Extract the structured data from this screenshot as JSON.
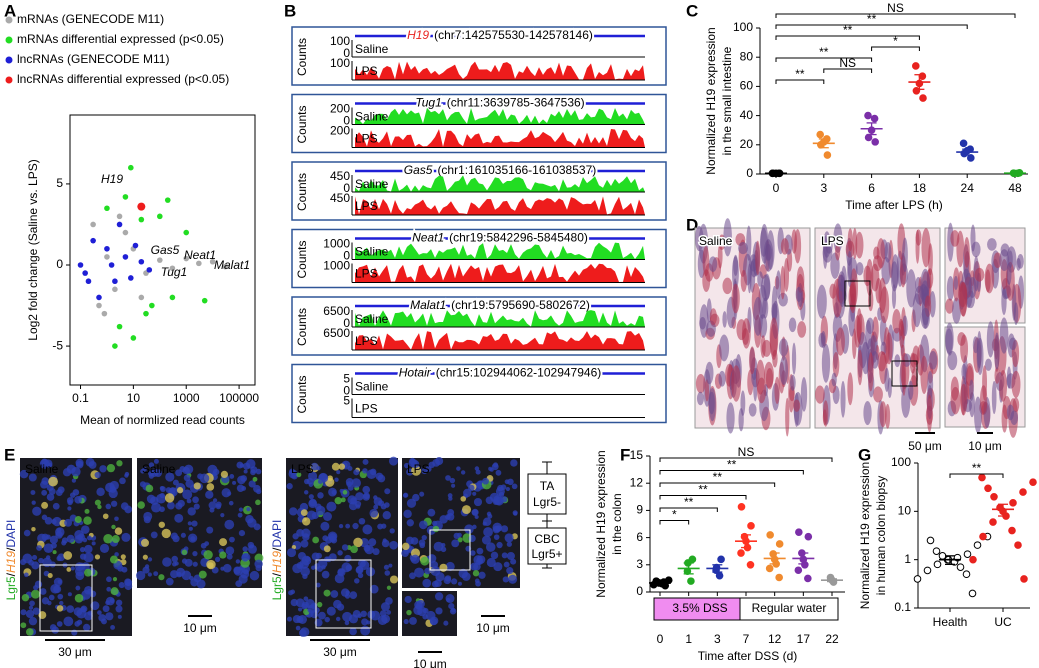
{
  "panel_labels": [
    "A",
    "B",
    "C",
    "D",
    "E",
    "F",
    "G"
  ],
  "chart_data": [
    {
      "type": "scatter",
      "xlabel": "Mean of normlized read counts",
      "ylabel": "Log2 fold change (Saline vs. LPS)",
      "xlog": true,
      "xlim": [
        0.04,
        400000
      ],
      "xticks": [
        0.1,
        10,
        1000,
        100000
      ],
      "ylim": [
        -7.4,
        9.25
      ],
      "yticks": [
        -5,
        0,
        5
      ],
      "series": [
        {
          "name": "mRNAs (GENECODE M11)",
          "color": "#aaaaaa",
          "x": [
            0.3,
            0.5,
            1,
            2,
            5,
            10,
            30,
            100,
            300,
            1000,
            3000,
            10000,
            30000,
            0.8,
            3,
            20
          ],
          "y": [
            2.5,
            -2.5,
            0.5,
            -1.5,
            2,
            1,
            -0.5,
            0.3,
            -0.2,
            0.4,
            0.1,
            0.2,
            -0.1,
            -3,
            3,
            -2
          ]
        },
        {
          "name": "mRNAs differential expressed (p<0.05)",
          "color": "#22dd22",
          "x": [
            1,
            3,
            5,
            10,
            20,
            50,
            100,
            300,
            1000,
            5000,
            2,
            8,
            30,
            200
          ],
          "y": [
            3.5,
            -3.8,
            4.2,
            -4.5,
            2.8,
            -2.5,
            3,
            -2,
            2,
            -2.2,
            -5,
            6,
            -3,
            4
          ]
        },
        {
          "name": "lncRNAs (GENECODE M11)",
          "color": "#1f1fd6",
          "x": [
            0.1,
            0.15,
            0.3,
            0.5,
            1,
            2,
            3,
            5,
            8,
            12,
            20,
            40,
            0.2,
            1.5
          ],
          "y": [
            0,
            -0.5,
            1.5,
            -2,
            1,
            -1,
            2.5,
            0.5,
            -0.8,
            1.2,
            0.2,
            -0.3,
            -1,
            0
          ]
        },
        {
          "name": "lncRNAs differential expressed (p<0.05)",
          "color": "#ee1c1c",
          "x": [
            20
          ],
          "y": [
            3.6
          ]
        }
      ],
      "annotations": [
        "H19",
        "Gas5",
        "Neat1",
        "Tug1",
        "Malat1"
      ]
    },
    {
      "type": "dot",
      "ylabel": [
        "Normalized H19 expression",
        "in the small intestine"
      ],
      "xlabel": "Time after LPS (h)",
      "categories": [
        "0",
        "3",
        "6",
        "18",
        "24",
        "48"
      ],
      "colors": [
        "#000000",
        "#f08a2e",
        "#7b2fa8",
        "#e8231f",
        "#2233aa",
        "#22aa22"
      ],
      "points": [
        [
          0.5,
          0.5,
          0.5,
          0.5,
          0.5
        ],
        [
          13,
          20,
          22,
          24,
          27
        ],
        [
          22,
          25,
          30,
          38,
          40
        ],
        [
          52,
          57,
          62,
          67,
          74
        ],
        [
          11,
          14,
          16,
          17,
          21
        ],
        [
          0.5,
          0.6,
          0.5,
          0.8
        ]
      ],
      "values": [
        0.5,
        21,
        31,
        63,
        15,
        0.6
      ],
      "errors": [
        0.1,
        3,
        4,
        5,
        2,
        0.1
      ],
      "ylim": [
        0,
        100
      ],
      "yticks": [
        0,
        20,
        40,
        60,
        80,
        100
      ],
      "comparisons": [
        {
          "from": "0",
          "to": "48",
          "label": "NS"
        },
        {
          "from": "0",
          "to": "24",
          "label": "**"
        },
        {
          "from": "0",
          "to": "18",
          "label": "**"
        },
        {
          "from": "6",
          "to": "18",
          "label": "*"
        },
        {
          "from": "0",
          "to": "6",
          "label": "**"
        },
        {
          "from": "3",
          "to": "6",
          "label": "NS"
        },
        {
          "from": "0",
          "to": "3",
          "label": "**"
        }
      ]
    },
    {
      "type": "dot",
      "ylabel": [
        "Normalized H19 expression",
        "in the colon"
      ],
      "xlabel": "Time after DSS (d)",
      "categories": [
        "0",
        "1",
        "3",
        "7",
        "12",
        "17",
        "22"
      ],
      "colors": [
        "#000000",
        "#22aa22",
        "#2233aa",
        "#ff3322",
        "#f08a2e",
        "#7b2fa8",
        "#999999"
      ],
      "points": [
        [
          0.7,
          0.8,
          0.9,
          1,
          1,
          1.1,
          1.2,
          1.3
        ],
        [
          1.2,
          2.3,
          3.2,
          3.6
        ],
        [
          1.8,
          2.4,
          2.7,
          3.6
        ],
        [
          3,
          4.3,
          4.9,
          5.6,
          6.1,
          7.3,
          9.4
        ],
        [
          1.6,
          2.6,
          3.1,
          3.6,
          4.2,
          5.3,
          6.3
        ],
        [
          1.5,
          2.4,
          3,
          3.6,
          4.3,
          6.1,
          6.6
        ],
        [
          1.1,
          1.3,
          1.6
        ]
      ],
      "values": [
        1,
        2.6,
        2.6,
        5.6,
        3.7,
        3.7,
        1.3
      ],
      "errors": [
        0.1,
        0.6,
        0.4,
        0.7,
        0.6,
        0.6,
        0.15
      ],
      "ylim": [
        0,
        15
      ],
      "yticks": [
        0,
        3,
        6,
        9,
        12,
        15
      ],
      "comparisons": [
        {
          "from": "0",
          "to": "22",
          "label": "NS"
        },
        {
          "from": "0",
          "to": "17",
          "label": "**"
        },
        {
          "from": "0",
          "to": "12",
          "label": "**"
        },
        {
          "from": "0",
          "to": "7",
          "label": "**"
        },
        {
          "from": "0",
          "to": "3",
          "label": "**"
        },
        {
          "from": "0",
          "to": "1",
          "label": "*"
        }
      ],
      "periods": [
        {
          "label": "3.5% DSS",
          "from": "0",
          "to": "7",
          "color": "#f08cf0"
        },
        {
          "label": "Regular water",
          "from": "7",
          "to": "22",
          "color": "#ffffff"
        }
      ]
    },
    {
      "type": "dot",
      "ylabel": [
        "Normalized H19 expression",
        "in human colon biopsy"
      ],
      "categories": [
        "Health",
        "UC"
      ],
      "colors": [
        "#000000",
        "#e8231f"
      ],
      "markers": [
        "open",
        "filled"
      ],
      "points": [
        [
          0.2,
          0.4,
          0.5,
          0.6,
          0.7,
          0.8,
          0.9,
          1,
          1,
          1.1,
          1.2,
          1.3,
          1.5,
          2,
          2.5,
          3
        ],
        [
          0.4,
          1,
          2,
          3,
          4,
          6,
          8,
          10,
          12,
          15,
          20,
          25,
          30,
          40,
          50
        ]
      ],
      "values": [
        1,
        11
      ],
      "errors": [
        0.2,
        3
      ],
      "ylog": true,
      "ylim": [
        0.1,
        100
      ],
      "yticks": [
        0.1,
        1,
        10,
        100
      ],
      "comparisons": [
        {
          "from": "Health",
          "to": "UC",
          "label": "**"
        }
      ]
    }
  ],
  "tracks": {
    "ylabel": "Counts",
    "saline": "Saline",
    "lps": "LPS",
    "genes": [
      {
        "gene": "H19",
        "coord": "(chr7:142575530-142578146)",
        "color": "#e8231f",
        "saline_ylim": [
          0,
          100
        ],
        "lps_max": 100,
        "saline_signal": false,
        "lps_signal": true
      },
      {
        "gene": "Tug1",
        "coord": "(chr11:3639785-3647536)",
        "color": "#000000",
        "saline_ylim": [
          0,
          200
        ],
        "lps_max": 200,
        "saline_signal": true,
        "lps_signal": true
      },
      {
        "gene": "Gas5",
        "coord": "(chr1:161035166-161038537)",
        "color": "#000000",
        "saline_ylim": [
          0,
          450
        ],
        "lps_max": 450,
        "saline_signal": true,
        "lps_signal": true
      },
      {
        "gene": "Neat1",
        "coord": "(chr19:5842296-5845480)",
        "color": "#000000",
        "saline_ylim": [
          0,
          1000
        ],
        "lps_max": 1000,
        "saline_signal": true,
        "lps_signal": true
      },
      {
        "gene": "Malat1",
        "coord": "(chr19:5795690-5802672)",
        "color": "#000000",
        "saline_ylim": [
          0,
          6500
        ],
        "lps_max": 6500,
        "saline_signal": true,
        "lps_signal": true
      },
      {
        "gene": "Hotair",
        "coord": "(chr15:102944062-102947946)",
        "color": "#000000",
        "saline_ylim": [
          0,
          5
        ],
        "lps_max": 5,
        "saline_signal": false,
        "lps_signal": false
      }
    ]
  },
  "histology": {
    "saline": "Saline",
    "lps": "LPS",
    "scale_large": "50 μm",
    "scale_small": "10 μm"
  },
  "immunofluorescence": {
    "stain": [
      "Lgr5",
      "/",
      "H19",
      "/",
      "DAPI"
    ],
    "panels": [
      "Saline",
      "Saline",
      "LPS",
      "LPS"
    ],
    "scales": [
      "30 μm",
      "10 μm",
      "30 μm",
      "10 μm",
      "10 μm"
    ],
    "zones": [
      "TA",
      "Lgr5-",
      "CBC",
      "Lgr5+"
    ]
  }
}
